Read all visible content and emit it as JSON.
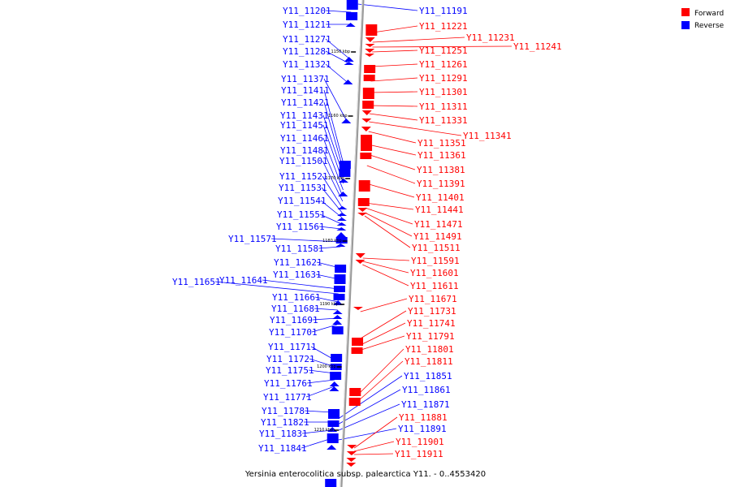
{
  "caption": "Yersinia enterocolitica subsp. palearctica Y11. - 0..4553420",
  "legend": [
    {
      "label": "Forward",
      "color": "#ff0000"
    },
    {
      "label": "Reverse",
      "color": "#0000ff"
    }
  ],
  "colors": {
    "forward": "#ff0000",
    "reverse": "#0000ff",
    "axis": "#999999"
  },
  "scale_ticks": [
    "1150 kbp",
    "1160 kbp",
    "1170 kbp",
    "1180 kbp",
    "1190 kbp",
    "1200 kbp",
    "1210 kbp"
  ],
  "reverse_genes": [
    "Y11_11201",
    "Y11_11211",
    "Y11_11271",
    "Y11_11281",
    "Y11_11321",
    "Y11_11371",
    "Y11_11411",
    "Y11_11421",
    "Y11_11431",
    "Y11_11451",
    "Y11_11461",
    "Y11_11481",
    "Y11_11501",
    "Y11_11521",
    "Y11_11531",
    "Y11_11541",
    "Y11_11551",
    "Y11_11561",
    "Y11_11571",
    "Y11_11581",
    "Y11_11621",
    "Y11_11631",
    "Y11_11641",
    "Y11_11651",
    "Y11_11661",
    "Y11_11681",
    "Y11_11691",
    "Y11_11701",
    "Y11_11711",
    "Y11_11721",
    "Y11_11751",
    "Y11_11761",
    "Y11_11771",
    "Y11_11781",
    "Y11_11821",
    "Y11_11831",
    "Y11_11841",
    "Y11_11191",
    "Y11_11851",
    "Y11_11861",
    "Y11_11871",
    "Y11_11891"
  ],
  "forward_genes": [
    "Y11_11221",
    "Y11_11231",
    "Y11_11241",
    "Y11_11251",
    "Y11_11261",
    "Y11_11291",
    "Y11_11301",
    "Y11_11311",
    "Y11_11331",
    "Y11_11341",
    "Y11_11351",
    "Y11_11361",
    "Y11_11381",
    "Y11_11391",
    "Y11_11401",
    "Y11_11441",
    "Y11_11471",
    "Y11_11491",
    "Y11_11511",
    "Y11_11591",
    "Y11_11601",
    "Y11_11611",
    "Y11_11671",
    "Y11_11731",
    "Y11_11741",
    "Y11_11791",
    "Y11_11801",
    "Y11_11811",
    "Y11_11881",
    "Y11_11901",
    "Y11_11911"
  ]
}
